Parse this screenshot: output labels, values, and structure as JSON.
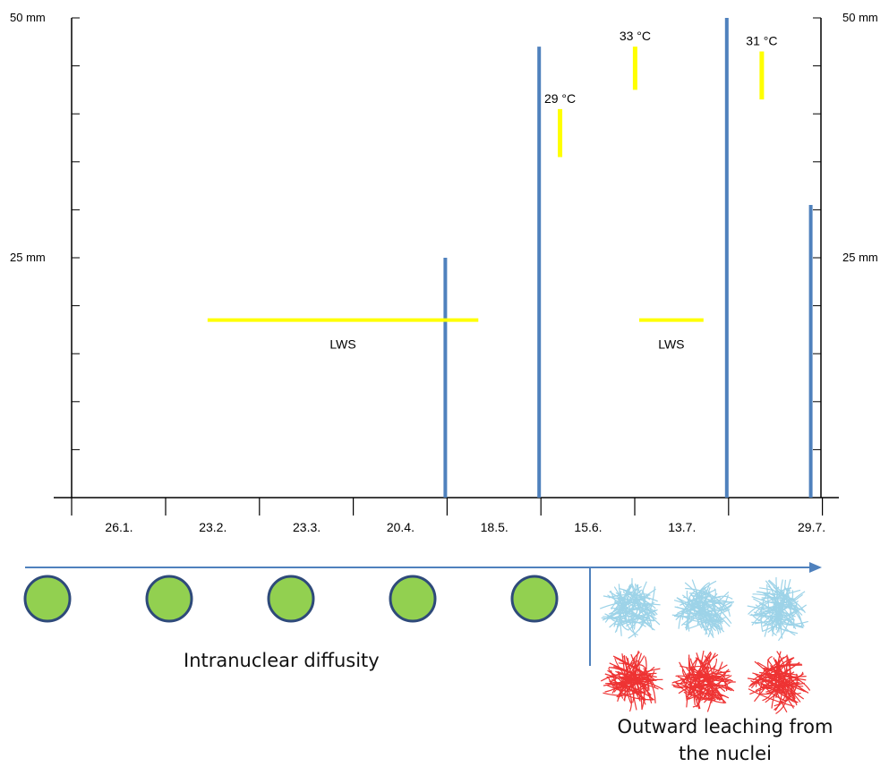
{
  "chart_data": {
    "type": "bar",
    "title": "",
    "xlabel": "",
    "ylabel": "",
    "ylim": [
      0,
      50
    ],
    "y_unit": "mm",
    "y_tick_labels": {
      "left": [
        "50 mm",
        "25 mm"
      ],
      "right": [
        "50 mm",
        "25 mm"
      ]
    },
    "categories": [
      "26.1.",
      "23.2.",
      "23.3.",
      "20.4.",
      "18.5.",
      "15.6.",
      "13.7.",
      "29.7."
    ],
    "series": [
      {
        "values": [
          0,
          0,
          0,
          25,
          47,
          0,
          50,
          30.5
        ],
        "color": "#4f81bd"
      }
    ],
    "annotations": [
      {
        "text": "LWS",
        "kind": "period",
        "from": 0.7,
        "to": 3.6,
        "level": 18.5,
        "color": "#ffff00"
      },
      {
        "text": "LWS",
        "kind": "period",
        "from": 5.3,
        "to": 6.0,
        "level": 18.5,
        "color": "#ffff00"
      },
      {
        "text": "29 °C",
        "kind": "temperature",
        "at": 4.7,
        "from": 35.5,
        "to": 40.5,
        "color": "#ffff00"
      },
      {
        "text": "33 °C",
        "kind": "temperature",
        "at": 5.5,
        "from": 42.5,
        "to": 47,
        "color": "#ffff00"
      },
      {
        "text": "31 °C",
        "kind": "temperature",
        "at": 6.85,
        "from": 41.5,
        "to": 46.5,
        "color": "#ffff00"
      }
    ],
    "grid": false,
    "legend": "none"
  },
  "stages": {
    "arrow_color": "#4f81bd",
    "intranuclear_label": "Intranuclear diffusity",
    "leaching_label_line1": "Outward leaching from",
    "leaching_label_line2": "the nuclei",
    "nucleus_count": 5,
    "nucleus_color": "#92d050",
    "nucleus_border": "#2e4a7a",
    "scribble_top_count": 3,
    "scribble_top_color": "#9dd3e8",
    "scribble_bottom_count": 3,
    "scribble_bottom_color": "#ee3333"
  }
}
